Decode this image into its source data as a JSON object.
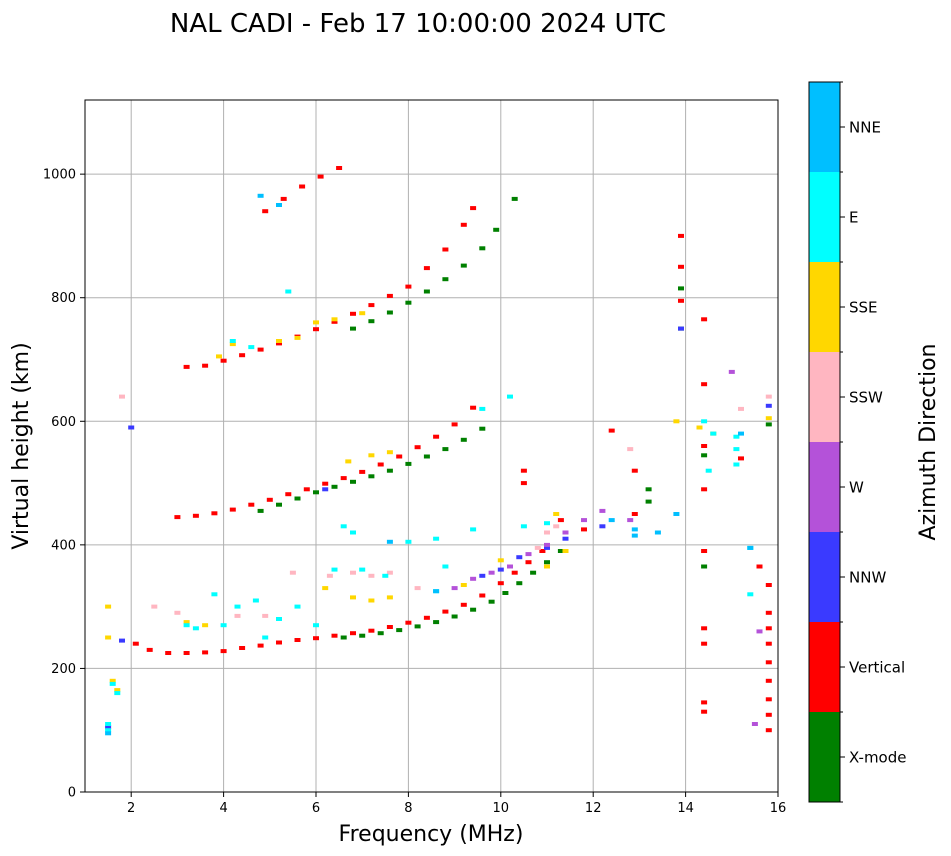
{
  "chart_data": {
    "type": "scatter",
    "title": "NAL CADI - Feb 17 10:00:00 2024 UTC",
    "xlabel": "Frequency (MHz)",
    "ylabel": "Virtual height (km)",
    "xlim": [
      1,
      16
    ],
    "ylim": [
      0,
      1120
    ],
    "xticks": [
      2,
      4,
      6,
      8,
      10,
      12,
      14,
      16
    ],
    "yticks": [
      0,
      200,
      400,
      600,
      800,
      1000
    ],
    "grid": true,
    "colorbar": {
      "label": "Azimuth Direction",
      "categories": [
        {
          "name": "X-mode",
          "color": "#008000"
        },
        {
          "name": "Vertical",
          "color": "#ff0000"
        },
        {
          "name": "NNW",
          "color": "#3a3aff"
        },
        {
          "name": "W",
          "color": "#b452d9"
        },
        {
          "name": "SSW",
          "color": "#ffb6c1"
        },
        {
          "name": "SSE",
          "color": "#ffd700"
        },
        {
          "name": "E",
          "color": "#00ffff"
        },
        {
          "name": "NNE",
          "color": "#00bfff"
        }
      ]
    },
    "series": [
      {
        "name": "Vertical",
        "points": [
          [
            2.1,
            240
          ],
          [
            2.4,
            230
          ],
          [
            2.8,
            225
          ],
          [
            3.2,
            225
          ],
          [
            3.6,
            226
          ],
          [
            4.0,
            228
          ],
          [
            4.4,
            233
          ],
          [
            4.8,
            237
          ],
          [
            5.2,
            242
          ],
          [
            5.6,
            246
          ],
          [
            6.0,
            249
          ],
          [
            6.4,
            253
          ],
          [
            6.8,
            257
          ],
          [
            7.2,
            261
          ],
          [
            7.6,
            267
          ],
          [
            8.0,
            274
          ],
          [
            8.4,
            282
          ],
          [
            8.8,
            292
          ],
          [
            9.2,
            303
          ],
          [
            9.6,
            318
          ],
          [
            10.0,
            338
          ],
          [
            10.3,
            355
          ],
          [
            10.6,
            372
          ],
          [
            10.9,
            390
          ],
          [
            3.0,
            445
          ],
          [
            3.4,
            447
          ],
          [
            3.8,
            451
          ],
          [
            4.2,
            457
          ],
          [
            4.6,
            465
          ],
          [
            5.0,
            473
          ],
          [
            5.4,
            482
          ],
          [
            5.8,
            490
          ],
          [
            6.2,
            499
          ],
          [
            6.6,
            508
          ],
          [
            7.0,
            518
          ],
          [
            7.4,
            530
          ],
          [
            7.8,
            543
          ],
          [
            8.2,
            558
          ],
          [
            8.6,
            575
          ],
          [
            9.0,
            595
          ],
          [
            9.4,
            622
          ],
          [
            3.2,
            688
          ],
          [
            3.6,
            690
          ],
          [
            4.0,
            698
          ],
          [
            4.4,
            707
          ],
          [
            4.8,
            716
          ],
          [
            5.2,
            726
          ],
          [
            5.6,
            737
          ],
          [
            6.0,
            749
          ],
          [
            6.4,
            761
          ],
          [
            6.8,
            774
          ],
          [
            7.2,
            788
          ],
          [
            7.6,
            803
          ],
          [
            8.0,
            818
          ],
          [
            8.4,
            848
          ],
          [
            8.8,
            878
          ],
          [
            9.2,
            918
          ],
          [
            9.4,
            945
          ],
          [
            4.9,
            940
          ],
          [
            5.3,
            960
          ],
          [
            5.7,
            980
          ],
          [
            6.1,
            996
          ],
          [
            6.5,
            1010
          ],
          [
            12.4,
            585
          ],
          [
            12.9,
            520
          ],
          [
            12.9,
            450
          ],
          [
            13.9,
            900
          ],
          [
            13.9,
            850
          ],
          [
            13.9,
            795
          ],
          [
            14.4,
            765
          ],
          [
            14.4,
            660
          ],
          [
            14.4,
            560
          ],
          [
            14.4,
            490
          ],
          [
            14.4,
            390
          ],
          [
            14.4,
            265
          ],
          [
            14.4,
            240
          ],
          [
            14.4,
            145
          ],
          [
            14.4,
            130
          ],
          [
            15.2,
            540
          ],
          [
            15.6,
            365
          ],
          [
            15.8,
            335
          ],
          [
            15.8,
            290
          ],
          [
            15.8,
            265
          ],
          [
            15.8,
            240
          ],
          [
            15.8,
            210
          ],
          [
            15.8,
            180
          ],
          [
            15.8,
            150
          ],
          [
            15.8,
            125
          ],
          [
            15.8,
            100
          ],
          [
            10.5,
            520
          ],
          [
            10.5,
            500
          ],
          [
            11.3,
            440
          ],
          [
            11.8,
            425
          ]
        ]
      },
      {
        "name": "X-mode",
        "points": [
          [
            6.6,
            250
          ],
          [
            7.0,
            253
          ],
          [
            7.4,
            257
          ],
          [
            7.8,
            262
          ],
          [
            8.2,
            268
          ],
          [
            8.6,
            275
          ],
          [
            9.0,
            284
          ],
          [
            9.4,
            295
          ],
          [
            9.8,
            308
          ],
          [
            10.1,
            322
          ],
          [
            10.4,
            338
          ],
          [
            10.7,
            355
          ],
          [
            11.0,
            372
          ],
          [
            11.3,
            390
          ],
          [
            4.8,
            455
          ],
          [
            5.2,
            465
          ],
          [
            5.6,
            475
          ],
          [
            6.0,
            485
          ],
          [
            6.4,
            494
          ],
          [
            6.8,
            502
          ],
          [
            7.2,
            511
          ],
          [
            7.6,
            520
          ],
          [
            8.0,
            531
          ],
          [
            8.4,
            543
          ],
          [
            8.8,
            555
          ],
          [
            9.2,
            570
          ],
          [
            9.6,
            588
          ],
          [
            6.8,
            750
          ],
          [
            7.2,
            762
          ],
          [
            7.6,
            776
          ],
          [
            8.0,
            792
          ],
          [
            8.4,
            810
          ],
          [
            8.8,
            830
          ],
          [
            9.2,
            852
          ],
          [
            9.6,
            880
          ],
          [
            9.9,
            910
          ],
          [
            10.3,
            960
          ],
          [
            13.2,
            490
          ],
          [
            13.2,
            470
          ],
          [
            13.9,
            815
          ],
          [
            13.9,
            750
          ],
          [
            14.4,
            545
          ],
          [
            14.4,
            365
          ],
          [
            15.8,
            595
          ]
        ]
      },
      {
        "name": "NNW",
        "points": [
          [
            1.5,
            105
          ],
          [
            1.8,
            245
          ],
          [
            2.0,
            590
          ],
          [
            6.2,
            490
          ],
          [
            9.6,
            350
          ],
          [
            10.0,
            360
          ],
          [
            10.4,
            380
          ],
          [
            11.0,
            395
          ],
          [
            11.4,
            410
          ],
          [
            12.2,
            430
          ],
          [
            13.9,
            750
          ],
          [
            15.8,
            625
          ]
        ]
      },
      {
        "name": "W",
        "points": [
          [
            9.0,
            330
          ],
          [
            9.4,
            345
          ],
          [
            9.8,
            355
          ],
          [
            10.2,
            365
          ],
          [
            10.6,
            385
          ],
          [
            11.0,
            400
          ],
          [
            11.4,
            420
          ],
          [
            11.8,
            440
          ],
          [
            12.2,
            455
          ],
          [
            12.8,
            440
          ],
          [
            15.0,
            680
          ],
          [
            15.6,
            260
          ],
          [
            15.5,
            110
          ]
        ]
      },
      {
        "name": "SSW",
        "points": [
          [
            1.8,
            640
          ],
          [
            2.5,
            300
          ],
          [
            3.0,
            290
          ],
          [
            4.3,
            285
          ],
          [
            4.9,
            285
          ],
          [
            5.5,
            355
          ],
          [
            6.3,
            350
          ],
          [
            6.8,
            355
          ],
          [
            7.2,
            350
          ],
          [
            7.6,
            355
          ],
          [
            8.2,
            330
          ],
          [
            10.8,
            395
          ],
          [
            11.0,
            420
          ],
          [
            11.2,
            430
          ],
          [
            12.8,
            555
          ],
          [
            15.2,
            620
          ],
          [
            15.8,
            640
          ]
        ]
      },
      {
        "name": "SSE",
        "points": [
          [
            1.5,
            300
          ],
          [
            1.5,
            250
          ],
          [
            1.6,
            180
          ],
          [
            1.7,
            165
          ],
          [
            3.2,
            275
          ],
          [
            3.6,
            270
          ],
          [
            5.2,
            730
          ],
          [
            5.6,
            735
          ],
          [
            6.0,
            760
          ],
          [
            6.4,
            765
          ],
          [
            7.0,
            775
          ],
          [
            4.2,
            725
          ],
          [
            3.9,
            705
          ],
          [
            6.2,
            330
          ],
          [
            6.8,
            315
          ],
          [
            7.2,
            310
          ],
          [
            7.6,
            315
          ],
          [
            6.7,
            535
          ],
          [
            7.2,
            545
          ],
          [
            7.6,
            550
          ],
          [
            9.2,
            335
          ],
          [
            10.0,
            375
          ],
          [
            11.0,
            365
          ],
          [
            11.4,
            390
          ],
          [
            11.2,
            450
          ],
          [
            13.8,
            600
          ],
          [
            14.3,
            590
          ],
          [
            14.6,
            580
          ],
          [
            15.8,
            605
          ]
        ]
      },
      {
        "name": "E",
        "points": [
          [
            1.5,
            110
          ],
          [
            1.5,
            100
          ],
          [
            1.6,
            175
          ],
          [
            1.7,
            160
          ],
          [
            3.2,
            270
          ],
          [
            3.4,
            265
          ],
          [
            3.8,
            320
          ],
          [
            4.0,
            270
          ],
          [
            4.3,
            300
          ],
          [
            4.7,
            310
          ],
          [
            4.9,
            250
          ],
          [
            5.2,
            280
          ],
          [
            5.6,
            300
          ],
          [
            6.0,
            270
          ],
          [
            6.4,
            360
          ],
          [
            7.0,
            360
          ],
          [
            7.5,
            350
          ],
          [
            8.0,
            405
          ],
          [
            8.6,
            410
          ],
          [
            8.8,
            365
          ],
          [
            8.6,
            325
          ],
          [
            9.4,
            425
          ],
          [
            10.5,
            430
          ],
          [
            11.0,
            435
          ],
          [
            4.2,
            730
          ],
          [
            4.6,
            720
          ],
          [
            5.4,
            810
          ],
          [
            6.6,
            430
          ],
          [
            6.8,
            420
          ],
          [
            14.4,
            600
          ],
          [
            14.6,
            580
          ],
          [
            14.5,
            520
          ],
          [
            15.1,
            575
          ],
          [
            15.1,
            555
          ],
          [
            15.1,
            530
          ],
          [
            15.4,
            395
          ],
          [
            15.4,
            320
          ],
          [
            10.2,
            640
          ],
          [
            9.6,
            620
          ]
        ]
      },
      {
        "name": "NNE",
        "points": [
          [
            1.5,
            95
          ],
          [
            4.8,
            965
          ],
          [
            5.2,
            950
          ],
          [
            7.6,
            405
          ],
          [
            8.6,
            325
          ],
          [
            12.4,
            440
          ],
          [
            12.9,
            425
          ],
          [
            12.9,
            415
          ],
          [
            13.4,
            420
          ],
          [
            13.8,
            450
          ],
          [
            15.2,
            580
          ],
          [
            15.4,
            395
          ]
        ]
      }
    ]
  }
}
